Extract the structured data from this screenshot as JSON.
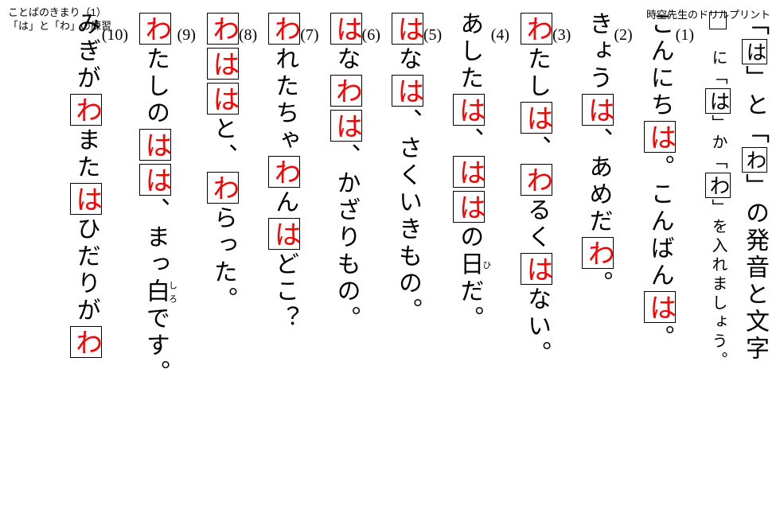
{
  "header_left_line1": "ことばのきまり（1）",
  "header_left_line2": "「は」と「わ」の練習",
  "header_right": "時空先生のドリルプリント",
  "title_parts": {
    "pre": "「",
    "b1": "は",
    "mid1": "」と「",
    "b2": "わ",
    "post": "」の発音と文字"
  },
  "instruction": {
    "pre": "　に「",
    "b1": "は",
    "mid1": "」か「",
    "b2": "わ",
    "post": "」を入れましょう。"
  },
  "q1": {
    "num": "(1)",
    "t1": "こんにち",
    "a1": "は",
    "t2": "。こんばん",
    "a2": "は",
    "t3": "。"
  },
  "q2": {
    "num": "(2)",
    "t1": "きょう",
    "a1": "は",
    "t2": "、あめだ",
    "a2": "わ",
    "t3": "。"
  },
  "q3": {
    "num": "(3)",
    "a1": "わ",
    "t1": "たし",
    "a2": "は",
    "t2": "、",
    "a3": "わ",
    "t3": "るく",
    "a4": "は",
    "t4": "ない。"
  },
  "q4": {
    "num": "(4)",
    "t1": "あした",
    "a1": "は",
    "t2": "、",
    "a2": "は",
    "a3": "は",
    "t3": "の",
    "ruby": "日",
    "rt": "ひ",
    "t4": "だ。"
  },
  "q5": {
    "num": "(5)",
    "a1": "は",
    "t1": "な",
    "a2": "は",
    "t2": "、さくいきもの。"
  },
  "q6": {
    "num": "(6)",
    "a1": "は",
    "t1": "な",
    "a2": "わ",
    "a3": "は",
    "t2": "、かざりもの。"
  },
  "q7": {
    "num": "(7)",
    "a1": "わ",
    "t1": "れたちゃ",
    "a2": "わ",
    "t2": "ん",
    "a3": "は",
    "t3": "どこ？"
  },
  "q8": {
    "num": "(8)",
    "a1": "わ",
    "a2": "は",
    "a3": "は",
    "t1": "と、",
    "a4": "わ",
    "t2": "らった。"
  },
  "q9": {
    "num": "(9)",
    "a1": "わ",
    "t1": "たしの",
    "a2": "は",
    "a3": "は",
    "t2": "、まっ",
    "ruby": "白",
    "rt": "しろ",
    "t3": "です。"
  },
  "q10": {
    "num": "(10)",
    "t1": "みぎが",
    "a1": "わ",
    "t2": "また",
    "a2": "は",
    "t3": "ひだりが",
    "a3": "わ"
  }
}
